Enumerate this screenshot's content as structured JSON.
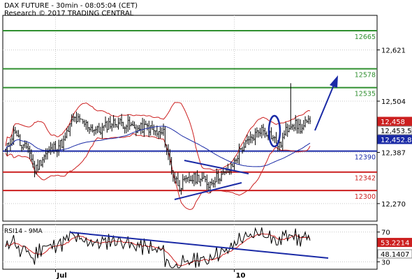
{
  "header": {
    "title": "DAX FUTURE - 30min - 08:05:04 (CET)",
    "subtitle": "Research © 2017 TRADING CENTRAL"
  },
  "rsi_label": "RSI14 - 9MA",
  "chart_data": [
    {
      "type": "candlestick",
      "title": "DAX FUTURE - 30min - 08:05:04 (CET)",
      "subtitle": "Research © 2017 TRADING CENTRAL",
      "ylim": [
        12230,
        12700
      ],
      "y_ticks": [
        "12,621",
        "12,504",
        "12,387",
        "12,270"
      ],
      "y_tick_values": [
        12621,
        12504,
        12387,
        12270
      ],
      "x_tick_labels": [
        "Jul",
        "10"
      ],
      "x_tick_index": [
        31,
        142
      ],
      "grid": true,
      "levels": [
        {
          "label": "12665",
          "value": 12665,
          "color": "#2f8f2f"
        },
        {
          "label": "12578",
          "value": 12578,
          "color": "#2f8f2f"
        },
        {
          "label": "12535",
          "value": 12535,
          "color": "#2f8f2f"
        },
        {
          "label": "12390",
          "value": 12390,
          "color": "#1a2aa6"
        },
        {
          "label": "12342",
          "value": 12342,
          "color": "#cc1f1f"
        },
        {
          "label": "12300",
          "value": 12300,
          "color": "#cc1f1f"
        }
      ],
      "price_badges": [
        {
          "label": "12,458",
          "value": 12458,
          "bg": "#cc1f1f",
          "fg": "#ffffff"
        },
        {
          "label": "12,453.5",
          "value": 12453.5,
          "bg": "#ffffff",
          "fg": "#000000"
        },
        {
          "label": "12,452.8",
          "value": 12452.8,
          "bg": "#1a2aa6",
          "fg": "#ffffff"
        }
      ],
      "colors": {
        "price": "#000000",
        "bands": "#cc1f1f",
        "moving_average": "#1a2aa6",
        "annotation": "#1a2aa6"
      }
    },
    {
      "type": "line",
      "title": "RSI14 - 9MA",
      "ylim": [
        20,
        80
      ],
      "y_ticks": [
        "70",
        "30"
      ],
      "y_tick_values": [
        70,
        30
      ],
      "values_badges": [
        {
          "label": "53.2214",
          "value": 53.2214,
          "bg": "#cc1f1f",
          "fg": "#ffffff"
        },
        {
          "label": "48.1407",
          "value": 48.1407,
          "bg": "#ffffff",
          "fg": "#000000"
        }
      ],
      "colors": {
        "rsi": "#000000",
        "ma": "#cc1f1f",
        "trendline": "#1a2aa6"
      }
    }
  ]
}
